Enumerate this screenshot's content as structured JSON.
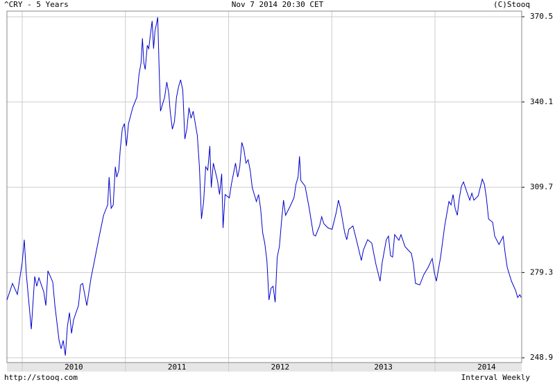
{
  "chart_data": {
    "type": "line",
    "title": "^CRY - 5 Years",
    "subtitle": "Nov 7 2014 20:30 CET",
    "annotations": [
      "(C)Stooq",
      "http://stooq.com",
      "Interval Weekly"
    ],
    "color": "#0000cc",
    "grid": true,
    "xlim": [
      2009.852,
      2014.84
    ],
    "xticks": [
      2010,
      2011,
      2012,
      2013,
      2014
    ],
    "ylim": [
      247.2,
      372.5
    ],
    "yticks": [
      248.9,
      279.3,
      309.7,
      340.1,
      370.5
    ],
    "x": [
      2009.852,
      2009.906,
      2009.953,
      2010.0,
      2010.02,
      2010.04,
      2010.088,
      2010.121,
      2010.141,
      2010.162,
      2010.209,
      2010.229,
      2010.249,
      2010.296,
      2010.317,
      2010.357,
      2010.377,
      2010.397,
      2010.418,
      2010.438,
      2010.458,
      2010.478,
      2010.498,
      2010.545,
      2010.566,
      2010.586,
      2010.626,
      2010.667,
      2010.707,
      2010.747,
      2010.788,
      2010.828,
      2010.842,
      2010.862,
      2010.882,
      2010.902,
      2010.916,
      2010.936,
      2010.95,
      2010.97,
      2010.99,
      2011.01,
      2011.03,
      2011.071,
      2011.111,
      2011.131,
      2011.152,
      2011.165,
      2011.178,
      2011.192,
      2011.212,
      2011.226,
      2011.246,
      2011.259,
      2011.273,
      2011.286,
      2011.3,
      2011.313,
      2011.327,
      2011.34,
      2011.36,
      2011.38,
      2011.401,
      2011.421,
      2011.434,
      2011.455,
      2011.475,
      2011.495,
      2011.515,
      2011.535,
      2011.556,
      2011.576,
      2011.596,
      2011.616,
      2011.636,
      2011.657,
      2011.697,
      2011.717,
      2011.737,
      2011.758,
      2011.778,
      2011.798,
      2011.818,
      2011.832,
      2011.852,
      2011.892,
      2011.912,
      2011.933,
      2011.946,
      2011.966,
      2012.007,
      2012.027,
      2012.067,
      2012.088,
      2012.108,
      2012.128,
      2012.148,
      2012.168,
      2012.189,
      2012.209,
      2012.229,
      2012.269,
      2012.29,
      2012.31,
      2012.33,
      2012.35,
      2012.371,
      2012.391,
      2012.411,
      2012.431,
      2012.451,
      2012.471,
      2012.492,
      2012.512,
      2012.532,
      2012.552,
      2012.593,
      2012.633,
      2012.653,
      2012.673,
      2012.687,
      2012.7,
      2012.741,
      2012.781,
      2012.822,
      2012.842,
      2012.882,
      2012.902,
      2012.923,
      2012.963,
      2013.003,
      2013.044,
      2013.064,
      2013.084,
      2013.125,
      2013.145,
      2013.165,
      2013.205,
      2013.246,
      2013.286,
      2013.306,
      2013.347,
      2013.387,
      2013.427,
      2013.468,
      2013.488,
      2013.528,
      2013.549,
      2013.569,
      2013.589,
      2013.609,
      2013.65,
      2013.67,
      2013.71,
      2013.771,
      2013.791,
      2013.811,
      2013.852,
      2013.892,
      2013.933,
      2013.973,
      2013.993,
      2014.013,
      2014.054,
      2014.094,
      2014.135,
      2014.155,
      2014.175,
      2014.195,
      2014.216,
      2014.236,
      2014.256,
      2014.276,
      2014.317,
      2014.337,
      2014.357,
      2014.377,
      2014.418,
      2014.458,
      2014.478,
      2014.498,
      2014.519,
      2014.559,
      2014.579,
      2014.62,
      2014.66,
      2014.68,
      2014.7,
      2014.741,
      2014.781,
      2014.801,
      2014.822,
      2014.835
    ],
    "values": [
      269.5,
      275.4,
      271.5,
      282.9,
      291.0,
      278.6,
      259.1,
      277.9,
      274.4,
      277.4,
      272.4,
      267.5,
      279.9,
      275.9,
      267.5,
      255.1,
      252.1,
      255.1,
      249.7,
      260.1,
      265.0,
      257.6,
      262.5,
      267.5,
      274.9,
      275.4,
      267.5,
      277.4,
      284.8,
      292.3,
      299.7,
      303.4,
      313.3,
      302.2,
      303.4,
      317.0,
      313.3,
      315.8,
      323.2,
      330.6,
      332.4,
      324.4,
      332.4,
      338.1,
      341.8,
      349.7,
      354.2,
      362.8,
      354.2,
      351.7,
      360.3,
      359.1,
      365.3,
      369.0,
      359.1,
      365.3,
      367.8,
      370.3,
      351.7,
      336.8,
      339.3,
      341.8,
      347.2,
      343.0,
      336.8,
      330.4,
      333.1,
      341.8,
      345.5,
      348.0,
      344.3,
      326.9,
      330.6,
      338.1,
      334.3,
      336.8,
      328.1,
      317.0,
      298.4,
      304.6,
      317.0,
      315.8,
      324.4,
      309.6,
      318.3,
      312.1,
      307.1,
      314.5,
      295.2,
      307.1,
      305.9,
      310.8,
      318.3,
      313.3,
      317.0,
      325.7,
      323.2,
      318.3,
      319.5,
      315.8,
      309.6,
      304.6,
      307.1,
      302.2,
      293.5,
      289.8,
      283.6,
      269.5,
      273.7,
      274.4,
      268.7,
      284.8,
      288.5,
      297.2,
      305.1,
      299.7,
      302.7,
      305.9,
      310.8,
      313.3,
      320.7,
      312.1,
      310.1,
      302.2,
      292.8,
      292.3,
      296.0,
      299.2,
      296.7,
      295.2,
      294.7,
      300.9,
      305.1,
      302.2,
      293.5,
      291.0,
      294.7,
      295.9,
      289.8,
      283.6,
      287.3,
      291.0,
      289.8,
      282.3,
      276.2,
      282.8,
      291.0,
      292.3,
      285.3,
      284.8,
      292.8,
      290.8,
      292.8,
      288.5,
      286.1,
      282.3,
      275.4,
      274.9,
      278.6,
      281.1,
      284.3,
      279.4,
      276.2,
      284.8,
      296.0,
      304.6,
      303.4,
      307.1,
      302.2,
      299.7,
      305.9,
      310.1,
      311.6,
      307.1,
      305.1,
      307.6,
      305.1,
      306.6,
      312.6,
      310.8,
      305.9,
      298.4,
      297.2,
      292.2,
      289.3,
      292.2,
      286.1,
      281.1,
      276.2,
      272.9,
      270.4,
      271.4,
      270.4
    ]
  }
}
